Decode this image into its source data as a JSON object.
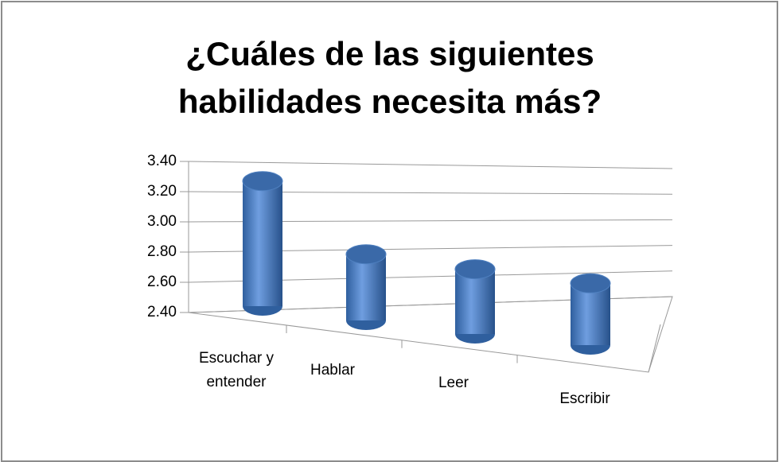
{
  "chart_data": {
    "type": "bar3d",
    "title": "¿Cuáles de las siguientes habilidades necesita más?",
    "categories": [
      "Escuchar y entender",
      "Hablar",
      "Leer",
      "Escribir"
    ],
    "values": [
      3.25,
      2.85,
      2.84,
      2.82
    ],
    "color": "#4a7ebb",
    "ylim": [
      2.4,
      3.4
    ],
    "yticks": [
      {
        "value": 2.4,
        "label": "2.40"
      },
      {
        "value": 2.6,
        "label": "2.60"
      },
      {
        "value": 2.8,
        "label": "2.80"
      },
      {
        "value": 3.0,
        "label": "3.00"
      },
      {
        "value": 3.2,
        "label": "3.20"
      },
      {
        "value": 3.4,
        "label": "3.40"
      }
    ],
    "grid": true
  }
}
